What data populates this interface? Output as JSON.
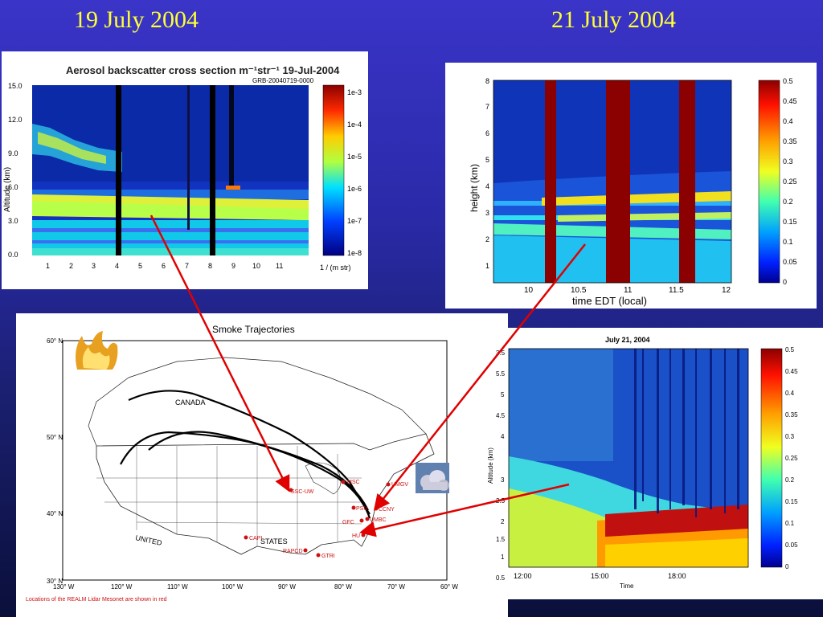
{
  "titles": {
    "left": "19 July 2004",
    "right": "21 July 2004"
  },
  "panel_tl": {
    "title": "Aerosol backscatter cross section m⁻¹str⁻¹  19-Jul-2004",
    "subtitle": "GRB-20040719-0000",
    "ylabel": "Altitude (km)",
    "yticks": [
      "15.0",
      "12.0",
      "9.0",
      "6.0",
      "3.0",
      "0.0"
    ],
    "xticks": [
      "1",
      "2",
      "3",
      "4",
      "5",
      "6",
      "7",
      "8",
      "9",
      "10",
      "11"
    ],
    "colorbar": [
      "1e-3",
      "1e-4",
      "1e-5",
      "1e-6",
      "1e-7",
      "1e-8"
    ],
    "colorbar_unit": "1 / (m str)"
  },
  "panel_tr": {
    "ylabel": "height (km)",
    "xlabel": "time EDT (local)",
    "yticks": [
      "8",
      "7",
      "6",
      "5",
      "4",
      "3",
      "2",
      "1"
    ],
    "xticks": [
      "10",
      "10.5",
      "11",
      "11.5",
      "12"
    ],
    "colorbar": [
      "0.5",
      "0.45",
      "0.4",
      "0.35",
      "0.3",
      "0.25",
      "0.2",
      "0.15",
      "0.1",
      "0.05",
      "0"
    ]
  },
  "map": {
    "title": "Smoke Trajectories",
    "lat_labels": [
      "60° N",
      "50° N",
      "40° N",
      "30° N"
    ],
    "lon_labels": [
      "130° W",
      "120° W",
      "110° W",
      "100° W",
      "90° W",
      "80° W",
      "70° W",
      "60° W"
    ],
    "country_labels": [
      "CANADA",
      "UNITED",
      "STATES"
    ],
    "stations": [
      "MSC",
      "UMGV",
      "SSC-UW",
      "PSU",
      "CCNY",
      "UMBC",
      "GFC",
      "HU",
      "CAPI",
      "RAPCD",
      "GTRI"
    ],
    "footnote": "Locations of the REALM Lidar Mesonet are shown in red"
  },
  "panel_br": {
    "title": "July 21, 2004",
    "ylabel": "Altitude (km)",
    "xlabel": "Time",
    "yticks": [
      "3.5",
      "3",
      "2.5",
      "2",
      "1.5",
      "1",
      "0.5"
    ],
    "yticks_top": [
      "5.5",
      "5",
      "4.5",
      "4"
    ],
    "xticks": [
      "12:00",
      "15:00",
      "18:00"
    ],
    "colorbar": [
      "0.5",
      "0.45",
      "0.4",
      "0.35",
      "0.3",
      "0.25",
      "0.2",
      "0.15",
      "0.1",
      "0.05",
      "0"
    ]
  }
}
